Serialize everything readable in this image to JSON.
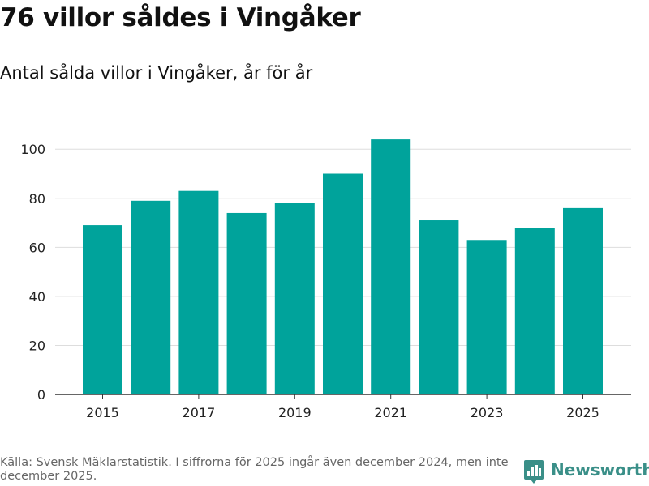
{
  "title": "76 villor såldes i Vingåker",
  "subtitle": "Antal sålda villor i Vingåker, år för år",
  "footer": {
    "source": "Källa: Svensk Mäklarstatistik. I siffrorna för 2025 ingår även december 2024, men inte december 2025."
  },
  "brand": {
    "name": "Newsworthy",
    "icon": "newsworthy-logo-icon"
  },
  "colors": {
    "bar": "#00a39b",
    "grid": "#dddddd",
    "axis": "#333333",
    "brand": "#3a8f88"
  },
  "chart_data": {
    "type": "bar",
    "title": "76 villor såldes i Vingåker",
    "subtitle": "Antal sålda villor i Vingåker, år för år",
    "xlabel": "",
    "ylabel": "",
    "categories": [
      "2015",
      "2016",
      "2017",
      "2018",
      "2019",
      "2020",
      "2021",
      "2022",
      "2023",
      "2024",
      "2025"
    ],
    "values": [
      69,
      79,
      83,
      74,
      78,
      90,
      104,
      71,
      63,
      68,
      76
    ],
    "x_tick_labels": [
      "2015",
      "2017",
      "2019",
      "2021",
      "2023",
      "2025"
    ],
    "y_ticks": [
      0,
      20,
      40,
      60,
      80,
      100
    ],
    "ylim": [
      0,
      108
    ],
    "grid": true
  }
}
